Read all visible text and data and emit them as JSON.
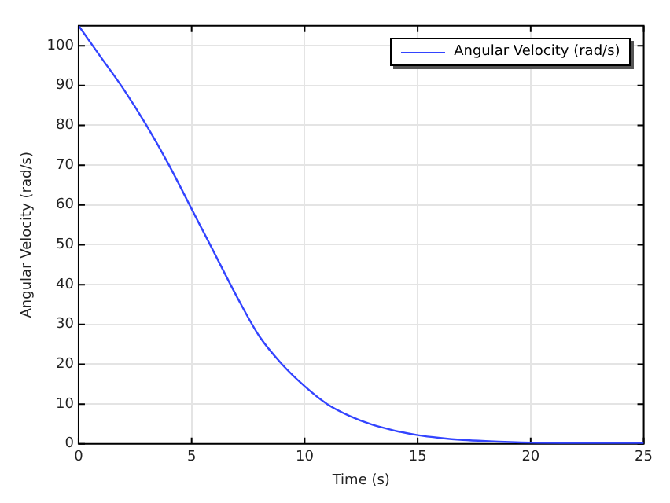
{
  "chart_data": {
    "type": "line",
    "xlabel": "Time (s)",
    "ylabel": "Angular Velocity (rad/s)",
    "xlim": [
      0,
      25
    ],
    "ylim": [
      0,
      105
    ],
    "xticks": [
      0,
      5,
      10,
      15,
      20,
      25
    ],
    "yticks": [
      0,
      10,
      20,
      30,
      40,
      50,
      60,
      70,
      80,
      90,
      100
    ],
    "grid": true,
    "legend": "top right",
    "marker": "none",
    "line_style": "solid",
    "series": [
      {
        "name": "Angular Velocity (rad/s)",
        "color": "#3344ff",
        "x": [
          0,
          1,
          2,
          3,
          4,
          5,
          6,
          7,
          8,
          9,
          10,
          11,
          12,
          13,
          14,
          15,
          16,
          17,
          18,
          20,
          22,
          25
        ],
        "values": [
          105,
          97,
          89,
          80,
          70,
          59,
          48,
          37,
          27,
          20,
          14.5,
          10,
          7,
          4.8,
          3.3,
          2.2,
          1.5,
          1,
          0.7,
          0.3,
          0.2,
          0.1
        ]
      }
    ]
  }
}
